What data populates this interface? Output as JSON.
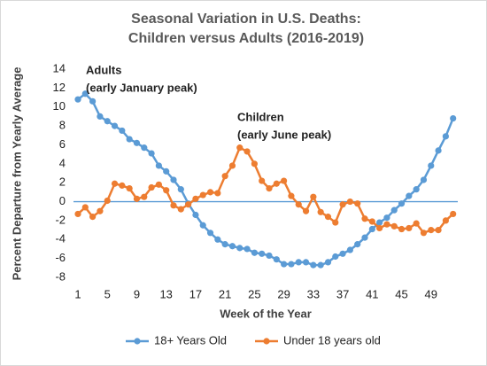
{
  "chart_data": {
    "type": "line",
    "title": [
      "Seasonal Variation in U.S. Deaths:",
      "Children versus Adults (2016-2019)"
    ],
    "x_label": "Week of the Year",
    "y_label": "Percent Departure from Yearly Average",
    "x": [
      1,
      2,
      3,
      4,
      5,
      6,
      7,
      8,
      9,
      10,
      11,
      12,
      13,
      14,
      15,
      16,
      17,
      18,
      19,
      20,
      21,
      22,
      23,
      24,
      25,
      26,
      27,
      28,
      29,
      30,
      31,
      32,
      33,
      34,
      35,
      36,
      37,
      38,
      39,
      40,
      41,
      42,
      43,
      44,
      45,
      46,
      47,
      48,
      49,
      50,
      51,
      52
    ],
    "xlim": [
      0,
      53
    ],
    "xticks": [
      1,
      5,
      9,
      13,
      17,
      21,
      25,
      29,
      33,
      37,
      41,
      45,
      49
    ],
    "ylim": [
      -8,
      14
    ],
    "yticks": [
      -8,
      -6,
      -4,
      -2,
      0,
      2,
      4,
      6,
      8,
      10,
      12,
      14
    ],
    "legend": "bottom",
    "series": [
      {
        "name": "18+ Years Old",
        "color": "#5b9bd5",
        "values": [
          10.8,
          11.4,
          10.6,
          9.0,
          8.5,
          8.0,
          7.5,
          6.6,
          6.2,
          5.7,
          5.1,
          3.8,
          3.2,
          2.3,
          1.3,
          -0.2,
          -1.4,
          -2.5,
          -3.3,
          -4.0,
          -4.5,
          -4.7,
          -4.9,
          -5.0,
          -5.4,
          -5.5,
          -5.7,
          -6.1,
          -6.6,
          -6.6,
          -6.4,
          -6.4,
          -6.7,
          -6.7,
          -6.4,
          -5.8,
          -5.5,
          -5.1,
          -4.5,
          -3.8,
          -2.9,
          -2.2,
          -1.7,
          -0.9,
          -0.2,
          0.6,
          1.3,
          2.3,
          3.8,
          5.4,
          6.9,
          8.8
        ]
      },
      {
        "name": "Under 18 years old",
        "color": "#ed7d31",
        "values": [
          -1.3,
          -0.6,
          -1.6,
          -1.0,
          0.1,
          1.9,
          1.7,
          1.4,
          0.3,
          0.5,
          1.5,
          1.8,
          1.2,
          -0.4,
          -0.8,
          -0.3,
          0.3,
          0.7,
          1.0,
          0.9,
          2.7,
          3.8,
          5.7,
          5.3,
          4.0,
          2.2,
          1.4,
          1.9,
          2.2,
          0.6,
          -0.3,
          -1.0,
          0.5,
          -1.1,
          -1.6,
          -2.2,
          -0.3,
          0.0,
          -0.2,
          -1.8,
          -2.1,
          -2.8,
          -2.4,
          -2.6,
          -2.9,
          -2.8,
          -2.3,
          -3.3,
          -3.0,
          -3.0,
          -2.0,
          -1.3
        ]
      }
    ],
    "annotations": [
      {
        "lines": [
          "Adults",
          "(early January peak)"
        ],
        "color": "#2e75b6"
      },
      {
        "lines": [
          "Children",
          "(early June peak)"
        ],
        "color": "#c55a11"
      }
    ]
  }
}
